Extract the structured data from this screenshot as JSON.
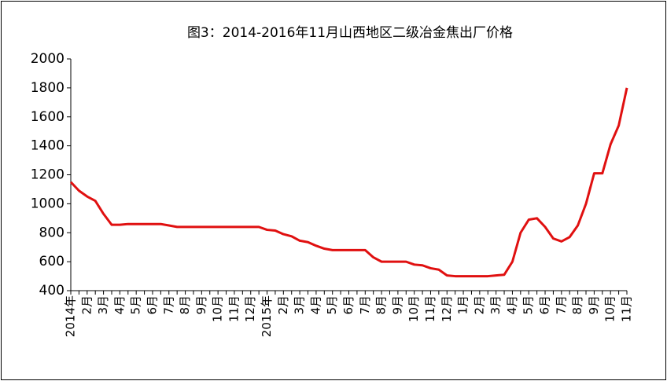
{
  "chart_data": {
    "type": "line",
    "title": "图3：2014-2016年11月山西地区二级冶金焦出厂价格",
    "categories": [
      "2014年",
      null,
      "2月",
      null,
      "3月",
      null,
      "4月",
      null,
      "5月",
      null,
      "6月",
      null,
      "7月",
      null,
      "8月",
      null,
      "9月",
      null,
      "10月",
      null,
      "11月",
      null,
      "12月",
      null,
      "2015年",
      null,
      "2月",
      null,
      "3月",
      null,
      "4月",
      null,
      "5月",
      null,
      "6月",
      null,
      "7月",
      null,
      "8月",
      null,
      "9月",
      null,
      "10月",
      null,
      "11月",
      null,
      "12月",
      null,
      "1月",
      null,
      "2月",
      null,
      "3月",
      null,
      "4月",
      null,
      "5月",
      null,
      "6月",
      null,
      "7月",
      null,
      "8月",
      null,
      "9月",
      null,
      "10月",
      null,
      "11月"
    ],
    "series": [
      {
        "color": "#e01010",
        "values": [
          1150,
          1090,
          1050,
          1020,
          930,
          855,
          855,
          860,
          860,
          860,
          860,
          860,
          850,
          840,
          840,
          840,
          840,
          840,
          840,
          840,
          840,
          840,
          840,
          840,
          820,
          815,
          790,
          775,
          745,
          735,
          710,
          690,
          680,
          680,
          680,
          680,
          680,
          630,
          600,
          600,
          600,
          600,
          580,
          575,
          555,
          545,
          505,
          500,
          500,
          500,
          500,
          500,
          505,
          510,
          600,
          800,
          890,
          900,
          840,
          760,
          740,
          770,
          850,
          1000,
          1210,
          1210,
          1410,
          1540,
          1800
        ]
      }
    ],
    "ylim": [
      400,
      2000
    ],
    "yticks": [
      400,
      600,
      800,
      1000,
      1200,
      1400,
      1600,
      1800,
      2000
    ],
    "grid": false
  }
}
